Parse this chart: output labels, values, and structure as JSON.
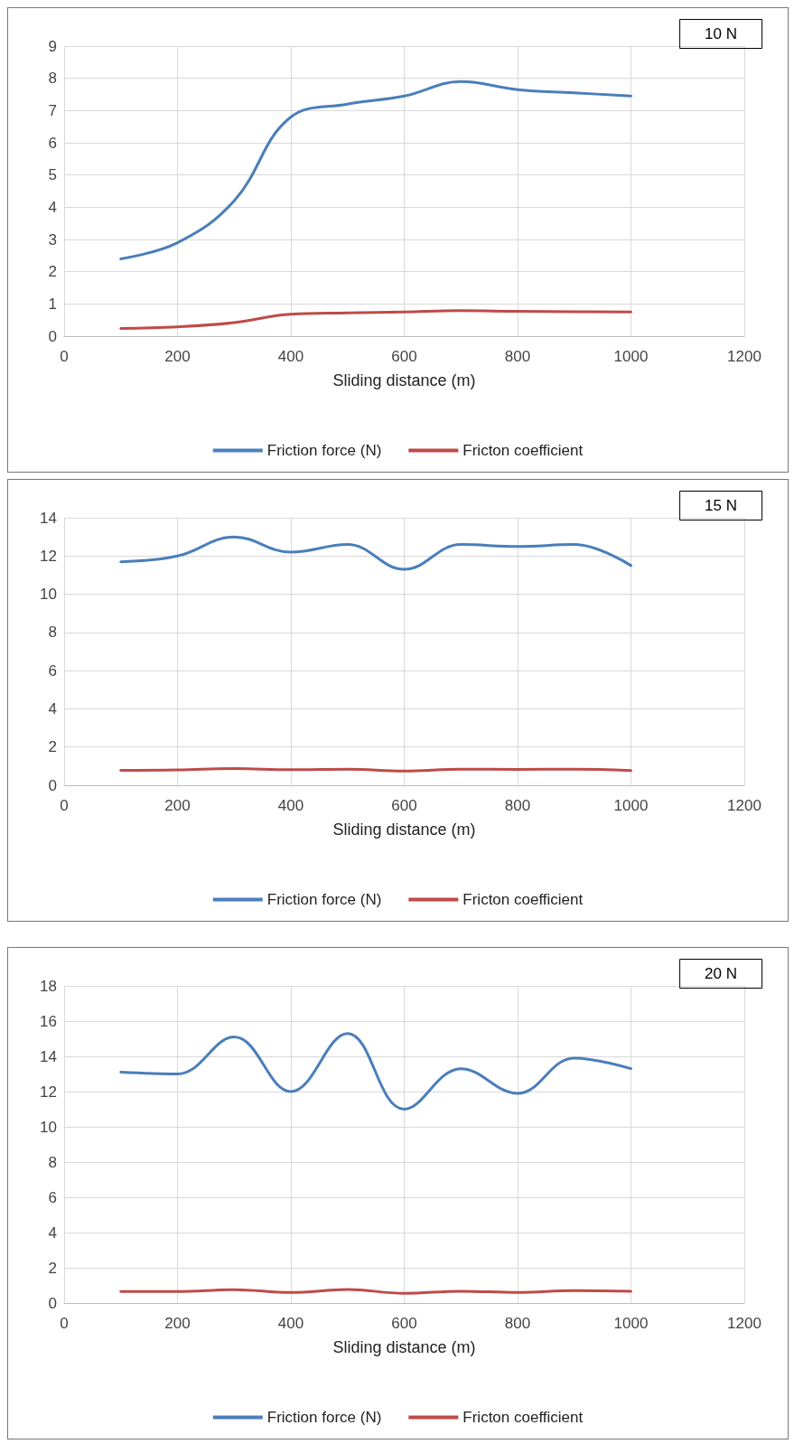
{
  "chart_data": [
    {
      "type": "line",
      "xlabel": "Sliding distance (m)",
      "annotations": [
        "10 N"
      ],
      "x": [
        100,
        200,
        300,
        400,
        500,
        600,
        700,
        800,
        900,
        1000
      ],
      "xlim": [
        0,
        1200
      ],
      "xticks": [
        0,
        200,
        400,
        600,
        800,
        1000,
        1200
      ],
      "ylim": [
        0,
        9
      ],
      "yticks": [
        0,
        1,
        2,
        3,
        4,
        5,
        6,
        7,
        8,
        9
      ],
      "grid": true,
      "legend": "bottom",
      "marker": "none",
      "line_style": "solid",
      "series": [
        {
          "name": "Friction force (N)",
          "color": "#4a7ebb",
          "values": [
            2.4,
            2.9,
            4.2,
            6.8,
            7.2,
            7.45,
            7.9,
            7.65,
            7.55,
            7.45
          ]
        },
        {
          "name": "Fricton coefficient",
          "color": "#be4b48",
          "values": [
            0.24,
            0.29,
            0.42,
            0.68,
            0.72,
            0.75,
            0.79,
            0.77,
            0.76,
            0.75
          ]
        }
      ]
    },
    {
      "type": "line",
      "xlabel": "Sliding distance (m)",
      "annotations": [
        "15 N"
      ],
      "x": [
        100,
        200,
        300,
        400,
        500,
        600,
        700,
        800,
        900,
        1000
      ],
      "xlim": [
        0,
        1200
      ],
      "xticks": [
        0,
        200,
        400,
        600,
        800,
        1000,
        1200
      ],
      "ylim": [
        0,
        14
      ],
      "yticks": [
        0,
        2,
        4,
        6,
        8,
        10,
        12,
        14
      ],
      "grid": true,
      "legend": "bottom",
      "marker": "none",
      "line_style": "solid",
      "series": [
        {
          "name": "Friction force (N)",
          "color": "#4a7ebb",
          "values": [
            11.7,
            12.0,
            13.0,
            12.2,
            12.6,
            11.3,
            12.6,
            12.5,
            12.6,
            11.5
          ]
        },
        {
          "name": "Fricton coefficient",
          "color": "#be4b48",
          "values": [
            0.78,
            0.8,
            0.87,
            0.81,
            0.84,
            0.75,
            0.84,
            0.83,
            0.84,
            0.77
          ]
        }
      ]
    },
    {
      "type": "line",
      "xlabel": "Sliding distance (m)",
      "annotations": [
        "20 N"
      ],
      "x": [
        100,
        200,
        300,
        400,
        500,
        600,
        700,
        800,
        900,
        1000
      ],
      "xlim": [
        0,
        1200
      ],
      "xticks": [
        0,
        200,
        400,
        600,
        800,
        1000,
        1200
      ],
      "ylim": [
        0,
        18
      ],
      "yticks": [
        0,
        2,
        4,
        6,
        8,
        10,
        12,
        14,
        16,
        18
      ],
      "grid": true,
      "legend": "bottom",
      "marker": "none",
      "line_style": "solid",
      "series": [
        {
          "name": "Friction force (N)",
          "color": "#4a7ebb",
          "values": [
            13.1,
            13.0,
            15.1,
            12.0,
            15.3,
            11.0,
            13.3,
            11.9,
            13.9,
            13.3
          ]
        },
        {
          "name": "Fricton coefficient",
          "color": "#be4b48",
          "values": [
            0.66,
            0.65,
            0.76,
            0.6,
            0.77,
            0.55,
            0.67,
            0.6,
            0.7,
            0.67
          ]
        }
      ]
    }
  ]
}
